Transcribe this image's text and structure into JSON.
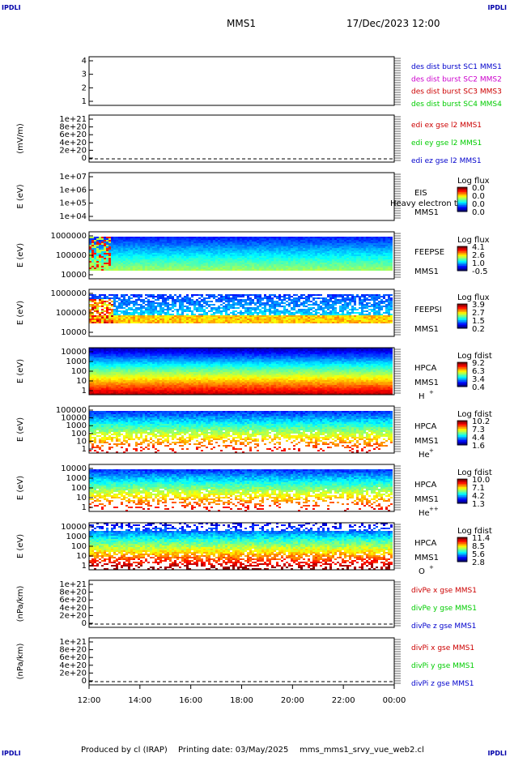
{
  "header": {
    "corner_label": "IPDLI",
    "title": "MMS1",
    "datetime": "17/Dec/2023 12:00"
  },
  "footer": {
    "credit": "Produced by cl (IRAP)",
    "printed": "Printing date: 03/May/2025",
    "script": "mms_mms1_srvy_vue_web2.cl"
  },
  "time_axis": {
    "ticks": [
      "12:00",
      "14:00",
      "16:00",
      "18:00",
      "20:00",
      "22:00",
      "00:00"
    ]
  },
  "colors": {
    "blue": "#0000cc",
    "magenta": "#cc00cc",
    "red": "#cc0000",
    "green": "#00cc00"
  },
  "chart_data": [
    {
      "type": "line",
      "ylabel": "",
      "yticks": [
        "4",
        "3",
        "2",
        "1"
      ],
      "ylim": [
        0.5,
        4.5
      ],
      "legend": [
        {
          "text": "des dist burst SC1 MMS1",
          "color": "#0000cc"
        },
        {
          "text": "des dist burst SC2 MMS2",
          "color": "#cc00cc"
        },
        {
          "text": "des dist burst SC3 MMS3",
          "color": "#cc0000"
        },
        {
          "text": "des dist burst SC4 MMS4",
          "color": "#00cc00"
        }
      ],
      "series": []
    },
    {
      "type": "line",
      "ylabel": "(mV/m)",
      "yticks": [
        "1e+21",
        "8e+20",
        "6e+20",
        "4e+20",
        "2e+20",
        "0"
      ],
      "ylim": [
        0,
        1e+21
      ],
      "legend": [
        {
          "text": "edi ex gse l2 MMS1",
          "color": "#cc0000"
        },
        {
          "text": "edi ey gse l2 MMS1",
          "color": "#00cc00"
        },
        {
          "text": "edi ez gse l2 MMS1",
          "color": "#0000cc"
        }
      ],
      "series": [],
      "zero_line": true
    },
    {
      "type": "heatmap",
      "ylabel": "E (eV)",
      "yticks": [
        "1e+07",
        "1e+06",
        "1e+05",
        "1e+04"
      ],
      "instrument": "EIS",
      "instrument_extra": "Heavy electron to",
      "spacecraft": "MMS1",
      "colorbar_title": "Log flux",
      "colorbar_ticks": [
        "0.0",
        "0.0",
        "0.0",
        "0.0"
      ],
      "fill": "empty"
    },
    {
      "type": "heatmap",
      "ylabel": "E (eV)",
      "yticks": [
        "1000000",
        "100000",
        "10000"
      ],
      "instrument": "FEEPSE",
      "spacecraft": "MMS1",
      "colorbar_title": "Log flux",
      "colorbar_ticks": [
        "4.1",
        "2.6",
        "1.0",
        "-0.5"
      ],
      "fill": "feepse"
    },
    {
      "type": "heatmap",
      "ylabel": "E (eV)",
      "yticks": [
        "1000000",
        "100000",
        "10000"
      ],
      "instrument": "FEEPSI",
      "spacecraft": "MMS1",
      "colorbar_title": "Log flux",
      "colorbar_ticks": [
        "3.9",
        "2.7",
        "1.5",
        "0.2"
      ],
      "fill": "feepsi"
    },
    {
      "type": "heatmap",
      "ylabel": "E (eV)",
      "yticks": [
        "10000",
        "1000",
        "100",
        "10",
        "1"
      ],
      "instrument": "HPCA",
      "spacecraft": "MMS1",
      "species": "H",
      "species_charge": "+",
      "colorbar_title": "Log fdist",
      "colorbar_ticks": [
        "9.2",
        "6.3",
        "3.4",
        "0.4"
      ],
      "fill": "hpca_h"
    },
    {
      "type": "heatmap",
      "ylabel": "E (eV)",
      "yticks": [
        "100000",
        "10000",
        "1000",
        "100",
        "10",
        "1"
      ],
      "instrument": "HPCA",
      "spacecraft": "MMS1",
      "species": "He",
      "species_charge": "+",
      "colorbar_title": "Log fdist",
      "colorbar_ticks": [
        "10.2",
        "7.3",
        "4.4",
        "1.6"
      ],
      "fill": "hpca_he"
    },
    {
      "type": "heatmap",
      "ylabel": "E (eV)",
      "yticks": [
        "10000",
        "1000",
        "100",
        "10",
        "1"
      ],
      "instrument": "HPCA",
      "spacecraft": "MMS1",
      "species": "He",
      "species_charge": "++",
      "colorbar_title": "Log fdist",
      "colorbar_ticks": [
        "10.0",
        "7.1",
        "4.2",
        "1.3"
      ],
      "fill": "hpca_hepp"
    },
    {
      "type": "heatmap",
      "ylabel": "E (eV)",
      "yticks": [
        "10000",
        "1000",
        "100",
        "10",
        "1"
      ],
      "instrument": "HPCA",
      "spacecraft": "MMS1",
      "species": "O",
      "species_charge": "+",
      "colorbar_title": "Log fdist",
      "colorbar_ticks": [
        "11.4",
        "8.5",
        "5.6",
        "2.8"
      ],
      "fill": "hpca_o"
    },
    {
      "type": "line",
      "ylabel": "(nPa/km)",
      "yticks": [
        "1e+21",
        "8e+20",
        "6e+20",
        "4e+20",
        "2e+20",
        "0"
      ],
      "ylim": [
        0,
        1e+21
      ],
      "legend": [
        {
          "text": "divPe x gse MMS1",
          "color": "#cc0000"
        },
        {
          "text": "divPe y gse MMS1",
          "color": "#00cc00"
        },
        {
          "text": "divPe z gse MMS1",
          "color": "#0000cc"
        }
      ],
      "series": [],
      "zero_line": true
    },
    {
      "type": "line",
      "ylabel": "(nPa/km)",
      "yticks": [
        "1e+21",
        "8e+20",
        "6e+20",
        "4e+20",
        "2e+20",
        "0"
      ],
      "ylim": [
        0,
        1e+21
      ],
      "legend": [
        {
          "text": "divPi x gse MMS1",
          "color": "#cc0000"
        },
        {
          "text": "divPi y gse MMS1",
          "color": "#00cc00"
        },
        {
          "text": "divPi z gse MMS1",
          "color": "#0000cc"
        }
      ],
      "series": [],
      "zero_line": true
    }
  ]
}
